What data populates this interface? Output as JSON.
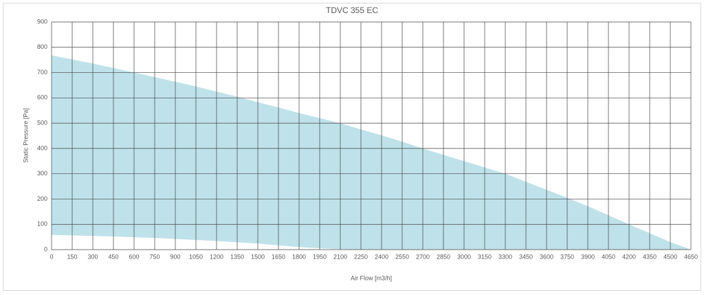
{
  "chart_data": {
    "type": "area",
    "title": "TDVC 355 EC",
    "x_label": "Air Flow [m3/h]",
    "y_label": "Static Pressure [Pa]",
    "x": [
      0,
      150,
      300,
      450,
      600,
      750,
      900,
      1050,
      1200,
      1350,
      1500,
      1650,
      1800,
      1950,
      2100,
      2250,
      2400,
      2550,
      2700,
      2850,
      3000,
      3150,
      3300,
      3450,
      3600,
      3750,
      3900,
      4050,
      4200,
      4350,
      4500,
      4650
    ],
    "series": [
      {
        "color": "#bfe2ea",
        "values": [
          768,
          752,
          736,
          718,
          700,
          682,
          664,
          645,
          625,
          605,
          583,
          562,
          540,
          520,
          500,
          475,
          452,
          427,
          400,
          375,
          350,
          325,
          300,
          268,
          237,
          205,
          172,
          136,
          100,
          65,
          30,
          0
        ]
      },
      {
        "color": "#ffffff",
        "values": [
          58,
          56,
          54,
          52,
          49,
          46,
          42,
          38,
          34,
          29,
          24,
          17,
          10,
          5,
          2,
          0,
          0,
          0,
          0,
          0,
          0,
          0,
          0,
          0,
          0,
          0,
          0,
          0,
          0,
          0,
          0,
          0
        ]
      }
    ],
    "xlim": [
      0,
      4650
    ],
    "xticks": [
      0,
      150,
      300,
      450,
      600,
      750,
      900,
      1050,
      1200,
      1350,
      1500,
      1650,
      1800,
      1950,
      2100,
      2250,
      2400,
      2550,
      2700,
      2850,
      3000,
      3150,
      3300,
      3450,
      3600,
      3750,
      3900,
      4050,
      4200,
      4350,
      4500,
      4650
    ],
    "ylim": [
      0,
      900
    ],
    "yticks": [
      0,
      100,
      200,
      300,
      400,
      500,
      600,
      700,
      800,
      900
    ],
    "grid": true
  }
}
